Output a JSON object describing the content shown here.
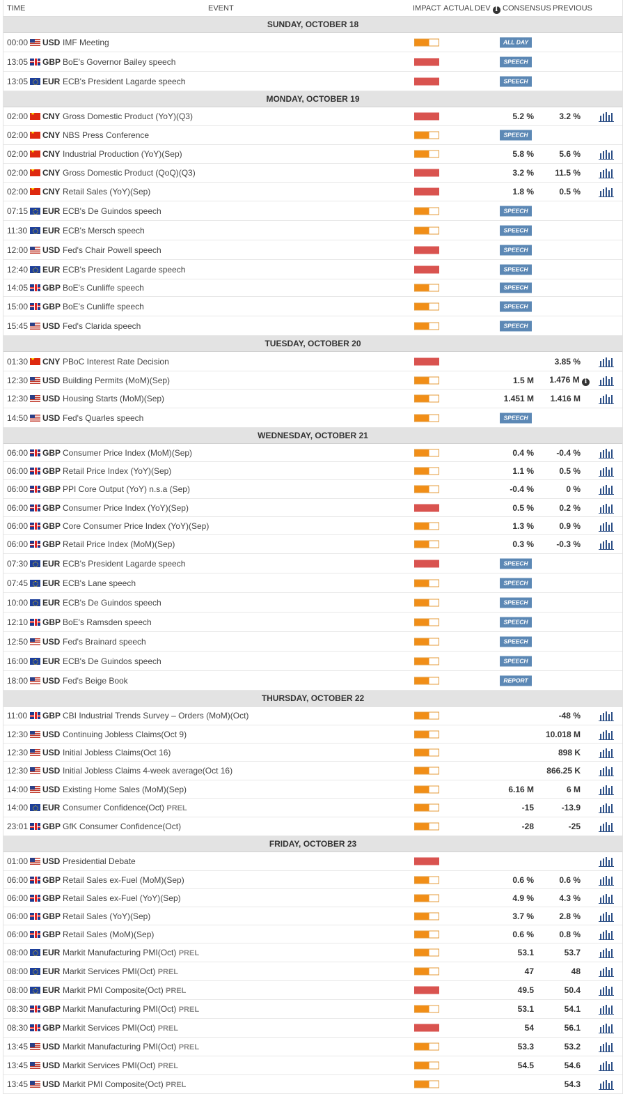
{
  "header": {
    "time": "TIME",
    "event": "EVENT",
    "impact": "IMPACT",
    "actual": "ACTUAL",
    "dev": "DEV",
    "consensus": "CONSENSUS",
    "previous": "PREVIOUS"
  },
  "colors": {
    "high_impact": "#d9534f",
    "medium_impact": "#f18e17",
    "tag_bg": "#5c88b5",
    "day_bg": "#e3e3e3"
  },
  "days": [
    {
      "label": "SUNDAY, OCTOBER 18",
      "events": [
        {
          "time": "00:00",
          "flag": "us",
          "currency": "USD",
          "name": "IMF Meeting",
          "impact": "medium",
          "tag": "ALL DAY"
        },
        {
          "time": "13:05",
          "flag": "gb",
          "currency": "GBP",
          "name": "BoE's Governor Bailey speech",
          "impact": "high",
          "tag": "SPEECH"
        },
        {
          "time": "13:05",
          "flag": "eu",
          "currency": "EUR",
          "name": "ECB's President Lagarde speech",
          "impact": "high",
          "tag": "SPEECH"
        }
      ]
    },
    {
      "label": "MONDAY, OCTOBER 19",
      "events": [
        {
          "time": "02:00",
          "flag": "cn",
          "currency": "CNY",
          "name": "Gross Domestic Product (YoY)(Q3)",
          "impact": "high",
          "consensus": "5.2 %",
          "previous": "3.2 %",
          "chart": true
        },
        {
          "time": "02:00",
          "flag": "cn",
          "currency": "CNY",
          "name": "NBS Press Conference",
          "impact": "medium",
          "tag": "SPEECH"
        },
        {
          "time": "02:00",
          "flag": "cn",
          "currency": "CNY",
          "name": "Industrial Production (YoY)(Sep)",
          "impact": "medium",
          "consensus": "5.8 %",
          "previous": "5.6 %",
          "chart": true
        },
        {
          "time": "02:00",
          "flag": "cn",
          "currency": "CNY",
          "name": "Gross Domestic Product (QoQ)(Q3)",
          "impact": "high",
          "consensus": "3.2 %",
          "previous": "11.5 %",
          "chart": true
        },
        {
          "time": "02:00",
          "flag": "cn",
          "currency": "CNY",
          "name": "Retail Sales (YoY)(Sep)",
          "impact": "high",
          "consensus": "1.8 %",
          "previous": "0.5 %",
          "chart": true
        },
        {
          "time": "07:15",
          "flag": "eu",
          "currency": "EUR",
          "name": "ECB's De Guindos speech",
          "impact": "medium",
          "tag": "SPEECH"
        },
        {
          "time": "11:30",
          "flag": "eu",
          "currency": "EUR",
          "name": "ECB's Mersch speech",
          "impact": "medium",
          "tag": "SPEECH"
        },
        {
          "time": "12:00",
          "flag": "us",
          "currency": "USD",
          "name": "Fed's Chair Powell speech",
          "impact": "high",
          "tag": "SPEECH"
        },
        {
          "time": "12:40",
          "flag": "eu",
          "currency": "EUR",
          "name": "ECB's President Lagarde speech",
          "impact": "high",
          "tag": "SPEECH"
        },
        {
          "time": "14:05",
          "flag": "gb",
          "currency": "GBP",
          "name": "BoE's Cunliffe speech",
          "impact": "medium",
          "tag": "SPEECH"
        },
        {
          "time": "15:00",
          "flag": "gb",
          "currency": "GBP",
          "name": "BoE's Cunliffe speech",
          "impact": "medium",
          "tag": "SPEECH"
        },
        {
          "time": "15:45",
          "flag": "us",
          "currency": "USD",
          "name": "Fed's Clarida speech",
          "impact": "medium",
          "tag": "SPEECH"
        }
      ]
    },
    {
      "label": "TUESDAY, OCTOBER 20",
      "events": [
        {
          "time": "01:30",
          "flag": "cn",
          "currency": "CNY",
          "name": "PBoC Interest Rate Decision",
          "impact": "high",
          "previous": "3.85 %",
          "chart": true
        },
        {
          "time": "12:30",
          "flag": "us",
          "currency": "USD",
          "name": "Building Permits (MoM)(Sep)",
          "impact": "medium",
          "consensus": "1.5 M",
          "previous": "1.476 M",
          "prev_info": true,
          "chart": true
        },
        {
          "time": "12:30",
          "flag": "us",
          "currency": "USD",
          "name": "Housing Starts (MoM)(Sep)",
          "impact": "medium",
          "consensus": "1.451 M",
          "previous": "1.416 M",
          "chart": true
        },
        {
          "time": "14:50",
          "flag": "us",
          "currency": "USD",
          "name": "Fed's Quarles speech",
          "impact": "medium",
          "tag": "SPEECH"
        }
      ]
    },
    {
      "label": "WEDNESDAY, OCTOBER 21",
      "events": [
        {
          "time": "06:00",
          "flag": "gb",
          "currency": "GBP",
          "name": "Consumer Price Index (MoM)(Sep)",
          "impact": "medium",
          "consensus": "0.4 %",
          "previous": "-0.4 %",
          "chart": true
        },
        {
          "time": "06:00",
          "flag": "gb",
          "currency": "GBP",
          "name": "Retail Price Index (YoY)(Sep)",
          "impact": "medium",
          "consensus": "1.1 %",
          "previous": "0.5 %",
          "chart": true
        },
        {
          "time": "06:00",
          "flag": "gb",
          "currency": "GBP",
          "name": "PPI Core Output (YoY) n.s.a (Sep)",
          "impact": "medium",
          "consensus": "-0.4 %",
          "previous": "0 %",
          "chart": true
        },
        {
          "time": "06:00",
          "flag": "gb",
          "currency": "GBP",
          "name": "Consumer Price Index (YoY)(Sep)",
          "impact": "high",
          "consensus": "0.5 %",
          "previous": "0.2 %",
          "chart": true
        },
        {
          "time": "06:00",
          "flag": "gb",
          "currency": "GBP",
          "name": "Core Consumer Price Index (YoY)(Sep)",
          "impact": "medium",
          "consensus": "1.3 %",
          "previous": "0.9 %",
          "chart": true
        },
        {
          "time": "06:00",
          "flag": "gb",
          "currency": "GBP",
          "name": "Retail Price Index (MoM)(Sep)",
          "impact": "medium",
          "consensus": "0.3 %",
          "previous": "-0.3 %",
          "chart": true
        },
        {
          "time": "07:30",
          "flag": "eu",
          "currency": "EUR",
          "name": "ECB's President Lagarde speech",
          "impact": "high",
          "tag": "SPEECH"
        },
        {
          "time": "07:45",
          "flag": "eu",
          "currency": "EUR",
          "name": "ECB's Lane speech",
          "impact": "medium",
          "tag": "SPEECH"
        },
        {
          "time": "10:00",
          "flag": "eu",
          "currency": "EUR",
          "name": "ECB's De Guindos speech",
          "impact": "medium",
          "tag": "SPEECH"
        },
        {
          "time": "12:10",
          "flag": "gb",
          "currency": "GBP",
          "name": "BoE's Ramsden speech",
          "impact": "medium",
          "tag": "SPEECH"
        },
        {
          "time": "12:50",
          "flag": "us",
          "currency": "USD",
          "name": "Fed's Brainard speech",
          "impact": "medium",
          "tag": "SPEECH"
        },
        {
          "time": "16:00",
          "flag": "eu",
          "currency": "EUR",
          "name": "ECB's De Guindos speech",
          "impact": "medium",
          "tag": "SPEECH"
        },
        {
          "time": "18:00",
          "flag": "us",
          "currency": "USD",
          "name": "Fed's Beige Book",
          "impact": "medium",
          "tag": "REPORT"
        }
      ]
    },
    {
      "label": "THURSDAY, OCTOBER 22",
      "events": [
        {
          "time": "11:00",
          "flag": "gb",
          "currency": "GBP",
          "name": "CBI Industrial Trends Survey – Orders (MoM)(Oct)",
          "impact": "medium",
          "previous": "-48 %",
          "chart": true
        },
        {
          "time": "12:30",
          "flag": "us",
          "currency": "USD",
          "name": "Continuing Jobless Claims(Oct 9)",
          "impact": "medium",
          "previous": "10.018 M",
          "chart": true
        },
        {
          "time": "12:30",
          "flag": "us",
          "currency": "USD",
          "name": "Initial Jobless Claims(Oct 16)",
          "impact": "medium",
          "previous": "898 K",
          "chart": true
        },
        {
          "time": "12:30",
          "flag": "us",
          "currency": "USD",
          "name": "Initial Jobless Claims 4-week average(Oct 16)",
          "impact": "medium",
          "previous": "866.25 K",
          "chart": true
        },
        {
          "time": "14:00",
          "flag": "us",
          "currency": "USD",
          "name": "Existing Home Sales (MoM)(Sep)",
          "impact": "medium",
          "consensus": "6.16 M",
          "previous": "6 M",
          "chart": true
        },
        {
          "time": "14:00",
          "flag": "eu",
          "currency": "EUR",
          "name": "Consumer Confidence(Oct)",
          "prel": "PREL",
          "impact": "medium",
          "consensus": "-15",
          "previous": "-13.9",
          "chart": true
        },
        {
          "time": "23:01",
          "flag": "gb",
          "currency": "GBP",
          "name": "GfK Consumer Confidence(Oct)",
          "impact": "medium",
          "consensus": "-28",
          "previous": "-25",
          "chart": true
        }
      ]
    },
    {
      "label": "FRIDAY, OCTOBER 23",
      "events": [
        {
          "time": "01:00",
          "flag": "us",
          "currency": "USD",
          "name": "Presidential Debate",
          "impact": "high",
          "chart": true
        },
        {
          "time": "06:00",
          "flag": "gb",
          "currency": "GBP",
          "name": "Retail Sales ex-Fuel (MoM)(Sep)",
          "impact": "medium",
          "consensus": "0.6 %",
          "previous": "0.6 %",
          "chart": true
        },
        {
          "time": "06:00",
          "flag": "gb",
          "currency": "GBP",
          "name": "Retail Sales ex-Fuel (YoY)(Sep)",
          "impact": "medium",
          "consensus": "4.9 %",
          "previous": "4.3 %",
          "chart": true
        },
        {
          "time": "06:00",
          "flag": "gb",
          "currency": "GBP",
          "name": "Retail Sales (YoY)(Sep)",
          "impact": "medium",
          "consensus": "3.7 %",
          "previous": "2.8 %",
          "chart": true
        },
        {
          "time": "06:00",
          "flag": "gb",
          "currency": "GBP",
          "name": "Retail Sales (MoM)(Sep)",
          "impact": "medium",
          "consensus": "0.6 %",
          "previous": "0.8 %",
          "chart": true
        },
        {
          "time": "08:00",
          "flag": "eu",
          "currency": "EUR",
          "name": "Markit Manufacturing PMI(Oct)",
          "prel": "PREL",
          "impact": "medium",
          "consensus": "53.1",
          "previous": "53.7",
          "chart": true
        },
        {
          "time": "08:00",
          "flag": "eu",
          "currency": "EUR",
          "name": "Markit Services PMI(Oct)",
          "prel": "PREL",
          "impact": "medium",
          "consensus": "47",
          "previous": "48",
          "chart": true
        },
        {
          "time": "08:00",
          "flag": "eu",
          "currency": "EUR",
          "name": "Markit PMI Composite(Oct)",
          "prel": "PREL",
          "impact": "high",
          "consensus": "49.5",
          "previous": "50.4",
          "chart": true
        },
        {
          "time": "08:30",
          "flag": "gb",
          "currency": "GBP",
          "name": "Markit Manufacturing PMI(Oct)",
          "prel": "PREL",
          "impact": "medium",
          "consensus": "53.1",
          "previous": "54.1",
          "chart": true
        },
        {
          "time": "08:30",
          "flag": "gb",
          "currency": "GBP",
          "name": "Markit Services PMI(Oct)",
          "prel": "PREL",
          "impact": "high",
          "consensus": "54",
          "previous": "56.1",
          "chart": true
        },
        {
          "time": "13:45",
          "flag": "us",
          "currency": "USD",
          "name": "Markit Manufacturing PMI(Oct)",
          "prel": "PREL",
          "impact": "medium",
          "consensus": "53.3",
          "previous": "53.2",
          "chart": true
        },
        {
          "time": "13:45",
          "flag": "us",
          "currency": "USD",
          "name": "Markit Services PMI(Oct)",
          "prel": "PREL",
          "impact": "medium",
          "consensus": "54.5",
          "previous": "54.6",
          "chart": true
        },
        {
          "time": "13:45",
          "flag": "us",
          "currency": "USD",
          "name": "Markit PMI Composite(Oct)",
          "prel": "PREL",
          "impact": "medium",
          "previous": "54.3",
          "chart": true
        }
      ]
    }
  ]
}
